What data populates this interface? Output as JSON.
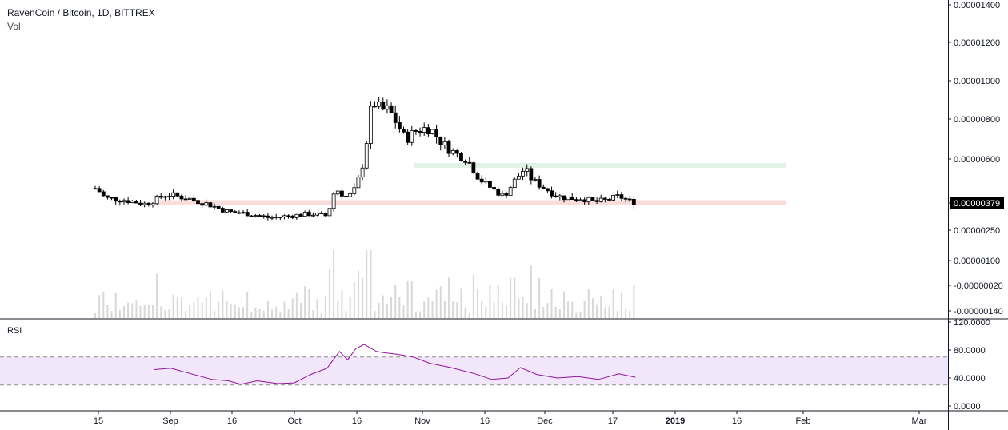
{
  "header": {
    "title": "RavenCoin / Bitcoin, 1D, BITTREX",
    "volume_label": "Vol"
  },
  "rsi_panel": {
    "label": "RSI",
    "price_axis_ticks": [
      "120.0000",
      "80.0000",
      "40.0000",
      "0.0000"
    ]
  },
  "chart_data": [
    {
      "type": "candlestick",
      "title": "RavenCoin / Bitcoin, 1D, BITTREX",
      "y_axis_ticks": [
        "0.00001400",
        "0.00001200",
        "0.00001000",
        "0.00000800",
        "0.00000600",
        "0.00000379",
        "0.00000250",
        "0.00000100",
        "-0.00000020",
        "-0.00000140"
      ],
      "last_price": "0.00000379",
      "x_axis_ticks": [
        "15",
        "Sep",
        "16",
        "Oct",
        "16",
        "Nov",
        "16",
        "Dec",
        "17",
        "2019",
        "16",
        "Feb",
        "Mar"
      ],
      "x_range": [
        "2018-08-15",
        "2019-03-01"
      ],
      "close_series": {
        "x": [
          "2018-08-15",
          "2018-08-17",
          "2018-08-22",
          "2018-08-27",
          "2018-09-01",
          "2018-09-06",
          "2018-09-11",
          "2018-09-16",
          "2018-09-21",
          "2018-09-26",
          "2018-10-01",
          "2018-10-06",
          "2018-10-10",
          "2018-10-12",
          "2018-10-15",
          "2018-10-17",
          "2018-10-19",
          "2018-10-21",
          "2018-10-23",
          "2018-10-25",
          "2018-10-27",
          "2018-10-29",
          "2018-11-01",
          "2018-11-04",
          "2018-11-07",
          "2018-11-10",
          "2018-11-13",
          "2018-11-16",
          "2018-11-19",
          "2018-11-22",
          "2018-11-25",
          "2018-11-27",
          "2018-11-29",
          "2018-12-02",
          "2018-12-05",
          "2018-12-08",
          "2018-12-11",
          "2018-12-14",
          "2018-12-17",
          "2018-12-20",
          "2018-12-23"
        ],
        "close": [
          4.5e-06,
          4e-06,
          3.9e-06,
          3.7e-06,
          4.2e-06,
          4e-06,
          3.7e-06,
          3.3e-06,
          3.2e-06,
          3e-06,
          3.1e-06,
          3.2e-06,
          3.1e-06,
          4.5e-06,
          4e-06,
          4.5e-06,
          6e-06,
          9e-06,
          8.5e-06,
          8.5e-06,
          7.8e-06,
          7e-06,
          7.5e-06,
          7.6e-06,
          6.8e-06,
          6.3e-06,
          6e-06,
          5e-06,
          4.5e-06,
          4.1e-06,
          5e-06,
          5.5e-06,
          4.9e-06,
          4.5e-06,
          4.1e-06,
          4e-06,
          4e-06,
          3.8e-06,
          3.9e-06,
          4.1e-06,
          3.8e-06
        ]
      },
      "volume_visible": true,
      "zones": [
        {
          "type": "support",
          "color": "#fadcdc",
          "y_from": 3.7e-06,
          "y_to": 3.9e-06
        },
        {
          "type": "resistance",
          "color": "#e2f2e6",
          "y_from": 5.6e-06,
          "y_to": 5.8e-06
        }
      ]
    },
    {
      "type": "line",
      "title": "RSI",
      "y_axis_ticks": [
        "120.0000",
        "80.0000",
        "40.0000",
        "0.0000"
      ],
      "ylim": [
        0,
        120
      ],
      "band": [
        30,
        70
      ],
      "series": [
        {
          "x": [
            "2018-08-29",
            "2018-09-02",
            "2018-09-07",
            "2018-09-12",
            "2018-09-16",
            "2018-09-19",
            "2018-09-23",
            "2018-09-28",
            "2018-10-02",
            "2018-10-06",
            "2018-10-10",
            "2018-10-13",
            "2018-10-15",
            "2018-10-17",
            "2018-10-19",
            "2018-10-22",
            "2018-10-24",
            "2018-10-27",
            "2018-10-31",
            "2018-11-04",
            "2018-11-09",
            "2018-11-15",
            "2018-11-19",
            "2018-11-23",
            "2018-11-26",
            "2018-11-30",
            "2018-12-05",
            "2018-12-10",
            "2018-12-15",
            "2018-12-20",
            "2018-12-24"
          ],
          "values": [
            52,
            54,
            46,
            38,
            36,
            31,
            36,
            32,
            33,
            45,
            54,
            78,
            66,
            82,
            88,
            78,
            76,
            74,
            70,
            61,
            55,
            46,
            38,
            40,
            55,
            45,
            40,
            42,
            38,
            46,
            41
          ]
        }
      ]
    }
  ],
  "colors": {
    "candle_up": "#ffffff",
    "candle_down": "#000000",
    "volume": "#d8d8d8",
    "rsi_line": "#8e1599",
    "rsi_band": "#f2e6fb",
    "axis_text": "#131722",
    "last_price_bg": "#000000"
  }
}
